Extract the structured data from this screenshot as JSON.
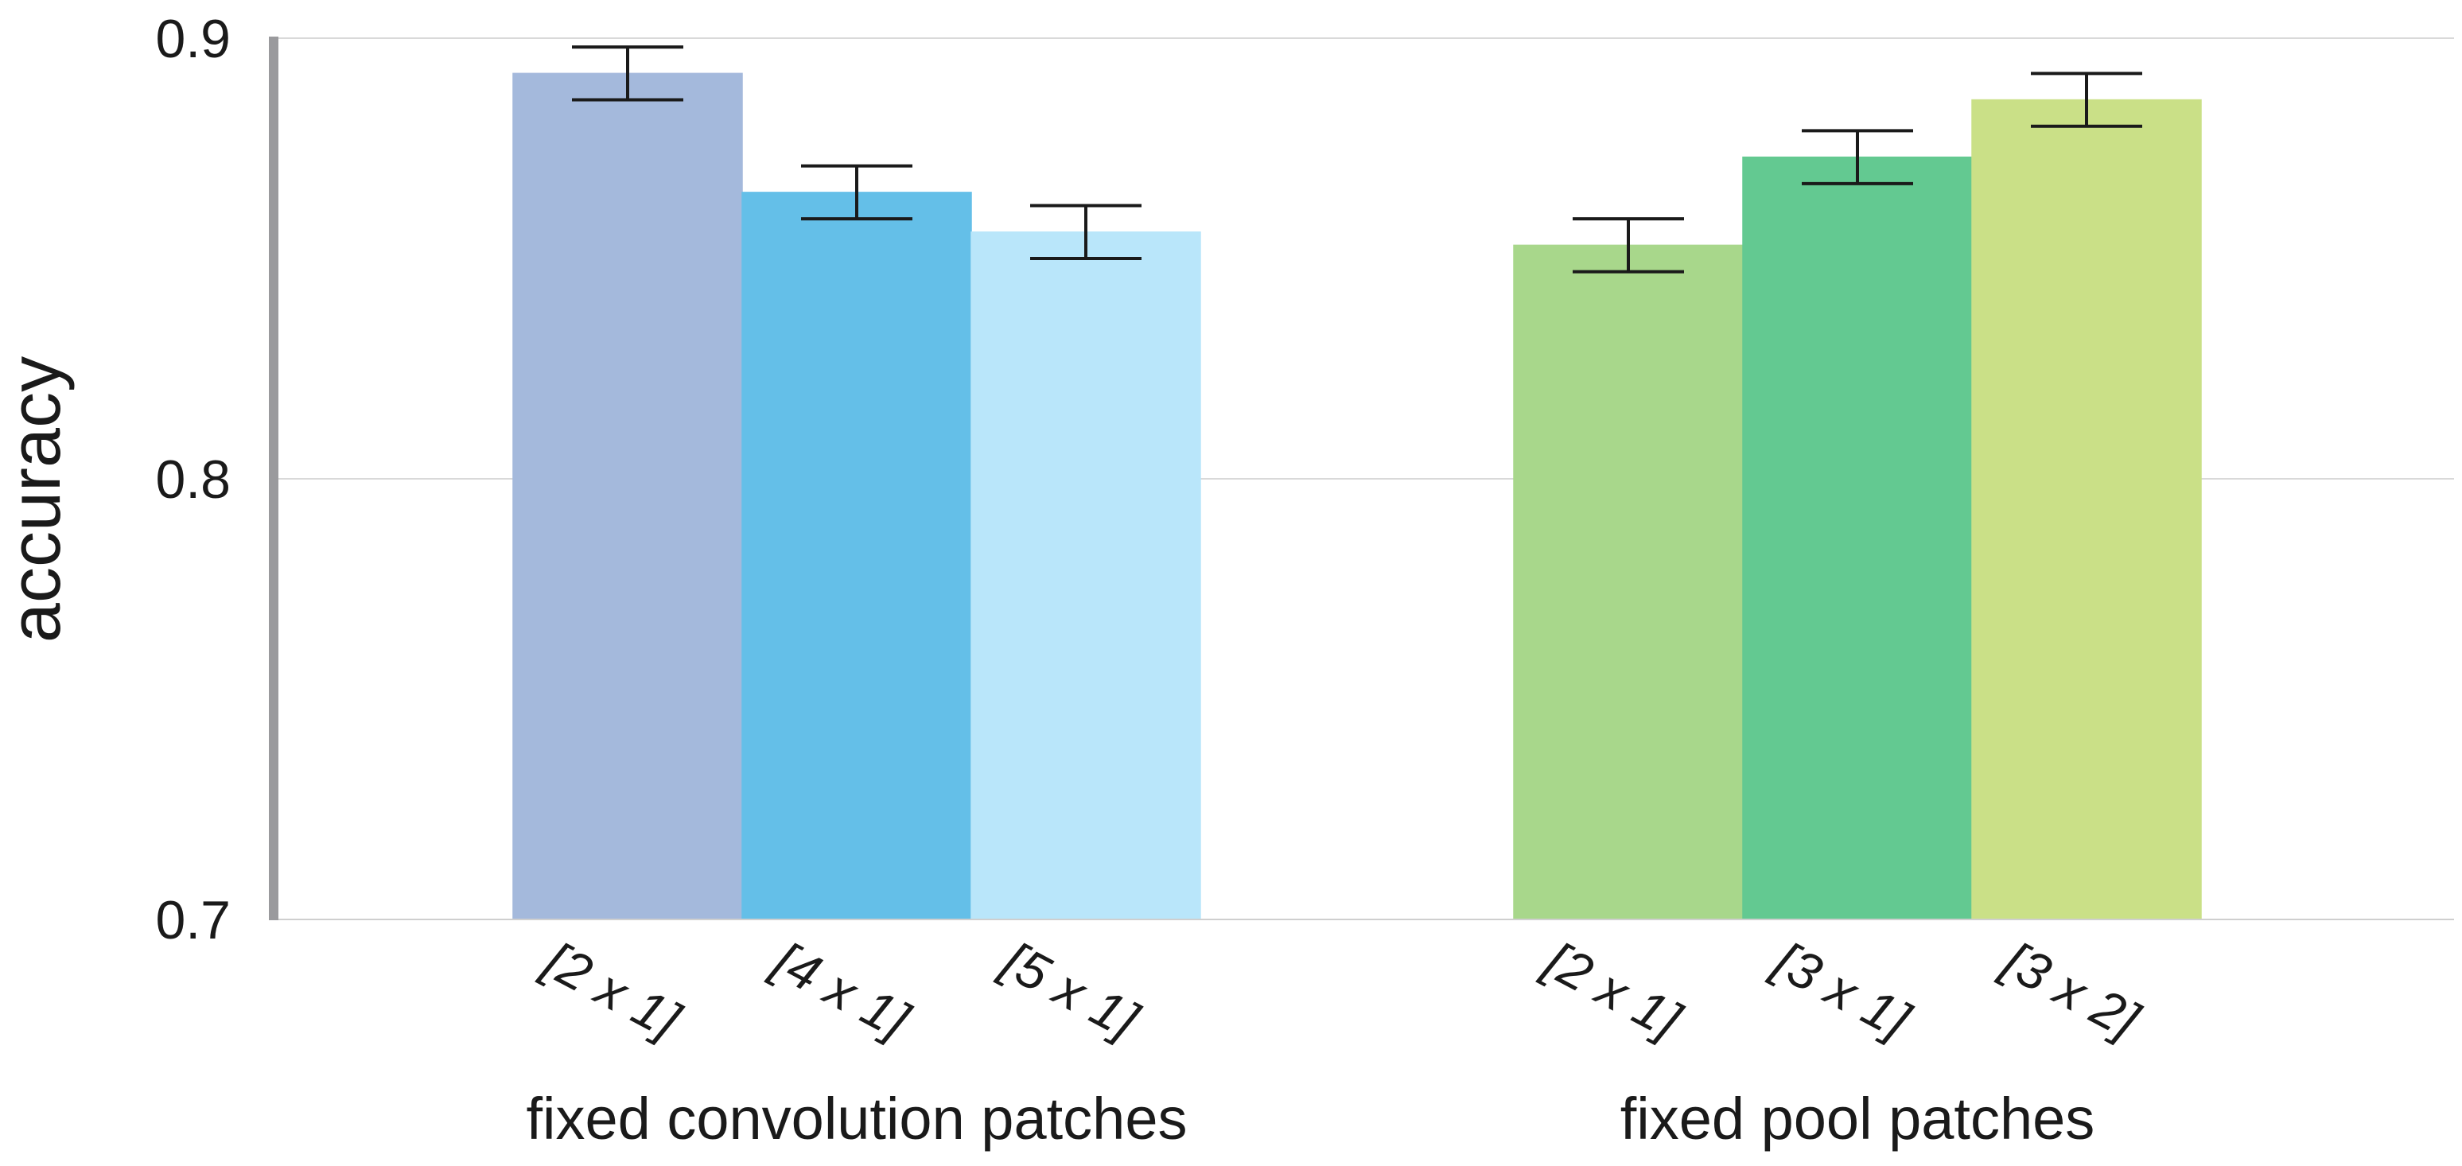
{
  "chart_data": {
    "type": "bar",
    "title": "",
    "xlabel": "",
    "ylabel": "accuracy",
    "ylim": [
      0.7,
      0.9
    ],
    "yticks": [
      {
        "value": 0.7,
        "label": "0.7"
      },
      {
        "value": 0.8,
        "label": "0.8"
      },
      {
        "value": 0.9,
        "label": "0.9"
      }
    ],
    "grid": true,
    "groups": [
      {
        "name": "fixed convolution patches",
        "bars": [
          {
            "category": "[2 x 1]",
            "value": 0.892,
            "error": 0.006,
            "color": "#a4b9dc"
          },
          {
            "category": "[4 x 1]",
            "value": 0.865,
            "error": 0.006,
            "color": "#64bfe8"
          },
          {
            "category": "[5 x 1]",
            "value": 0.856,
            "error": 0.006,
            "color": "#b9e6fa"
          }
        ]
      },
      {
        "name": "fixed pool patches",
        "bars": [
          {
            "category": "[2 x 1]",
            "value": 0.853,
            "error": 0.006,
            "color": "#a8d78b"
          },
          {
            "category": "[3 x 1]",
            "value": 0.873,
            "error": 0.006,
            "color": "#63c991"
          },
          {
            "category": "[3 x 2]",
            "value": 0.886,
            "error": 0.006,
            "color": "#cae087"
          }
        ]
      }
    ]
  }
}
